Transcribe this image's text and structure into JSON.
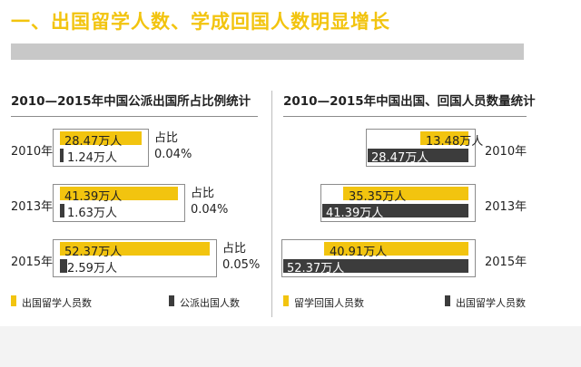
{
  "page": {
    "title": "一、出国留学人数、学成回国人数明显增长"
  },
  "legend": {
    "left": {
      "yellow": "出国留学人员数",
      "dark": "公派出国人数"
    },
    "right": {
      "yellow": "留学回国人员数",
      "dark": "出国留学人员数"
    }
  },
  "colors": {
    "yellow": "#f2c40f",
    "dark": "#3c3c3c"
  },
  "chart_data": [
    {
      "type": "bar",
      "orientation": "horizontal",
      "title": "2010—2015年中国公派出国所占比例统计",
      "categories": [
        "2010年",
        "2013年",
        "2015年"
      ],
      "series": [
        {
          "name": "出国留学人员数",
          "values": [
            28.47,
            41.39,
            52.37
          ],
          "labels": [
            "28.47万人",
            "41.39万人",
            "52.37万人"
          ]
        },
        {
          "name": "公派出国人数",
          "values": [
            1.24,
            1.63,
            2.59
          ],
          "labels": [
            "1.24万人",
            "1.63万人",
            "2.59万人"
          ]
        }
      ],
      "ratio_label": "占比",
      "ratios": [
        "0.04%",
        "0.04%",
        "0.05%"
      ]
    },
    {
      "type": "bar",
      "orientation": "horizontal",
      "title": "2010—2015年中国出国、回国人员数量统计",
      "categories": [
        "2010年",
        "2013年",
        "2015年"
      ],
      "series": [
        {
          "name": "留学回国人员数",
          "values": [
            13.48,
            35.35,
            40.91
          ],
          "labels": [
            "13.48万人",
            "35.35万人",
            "40.91万人"
          ]
        },
        {
          "name": "出国留学人员数",
          "values": [
            28.47,
            41.39,
            52.37
          ],
          "labels": [
            "28.47万人",
            "41.39万人",
            "52.37万人"
          ]
        }
      ]
    }
  ]
}
